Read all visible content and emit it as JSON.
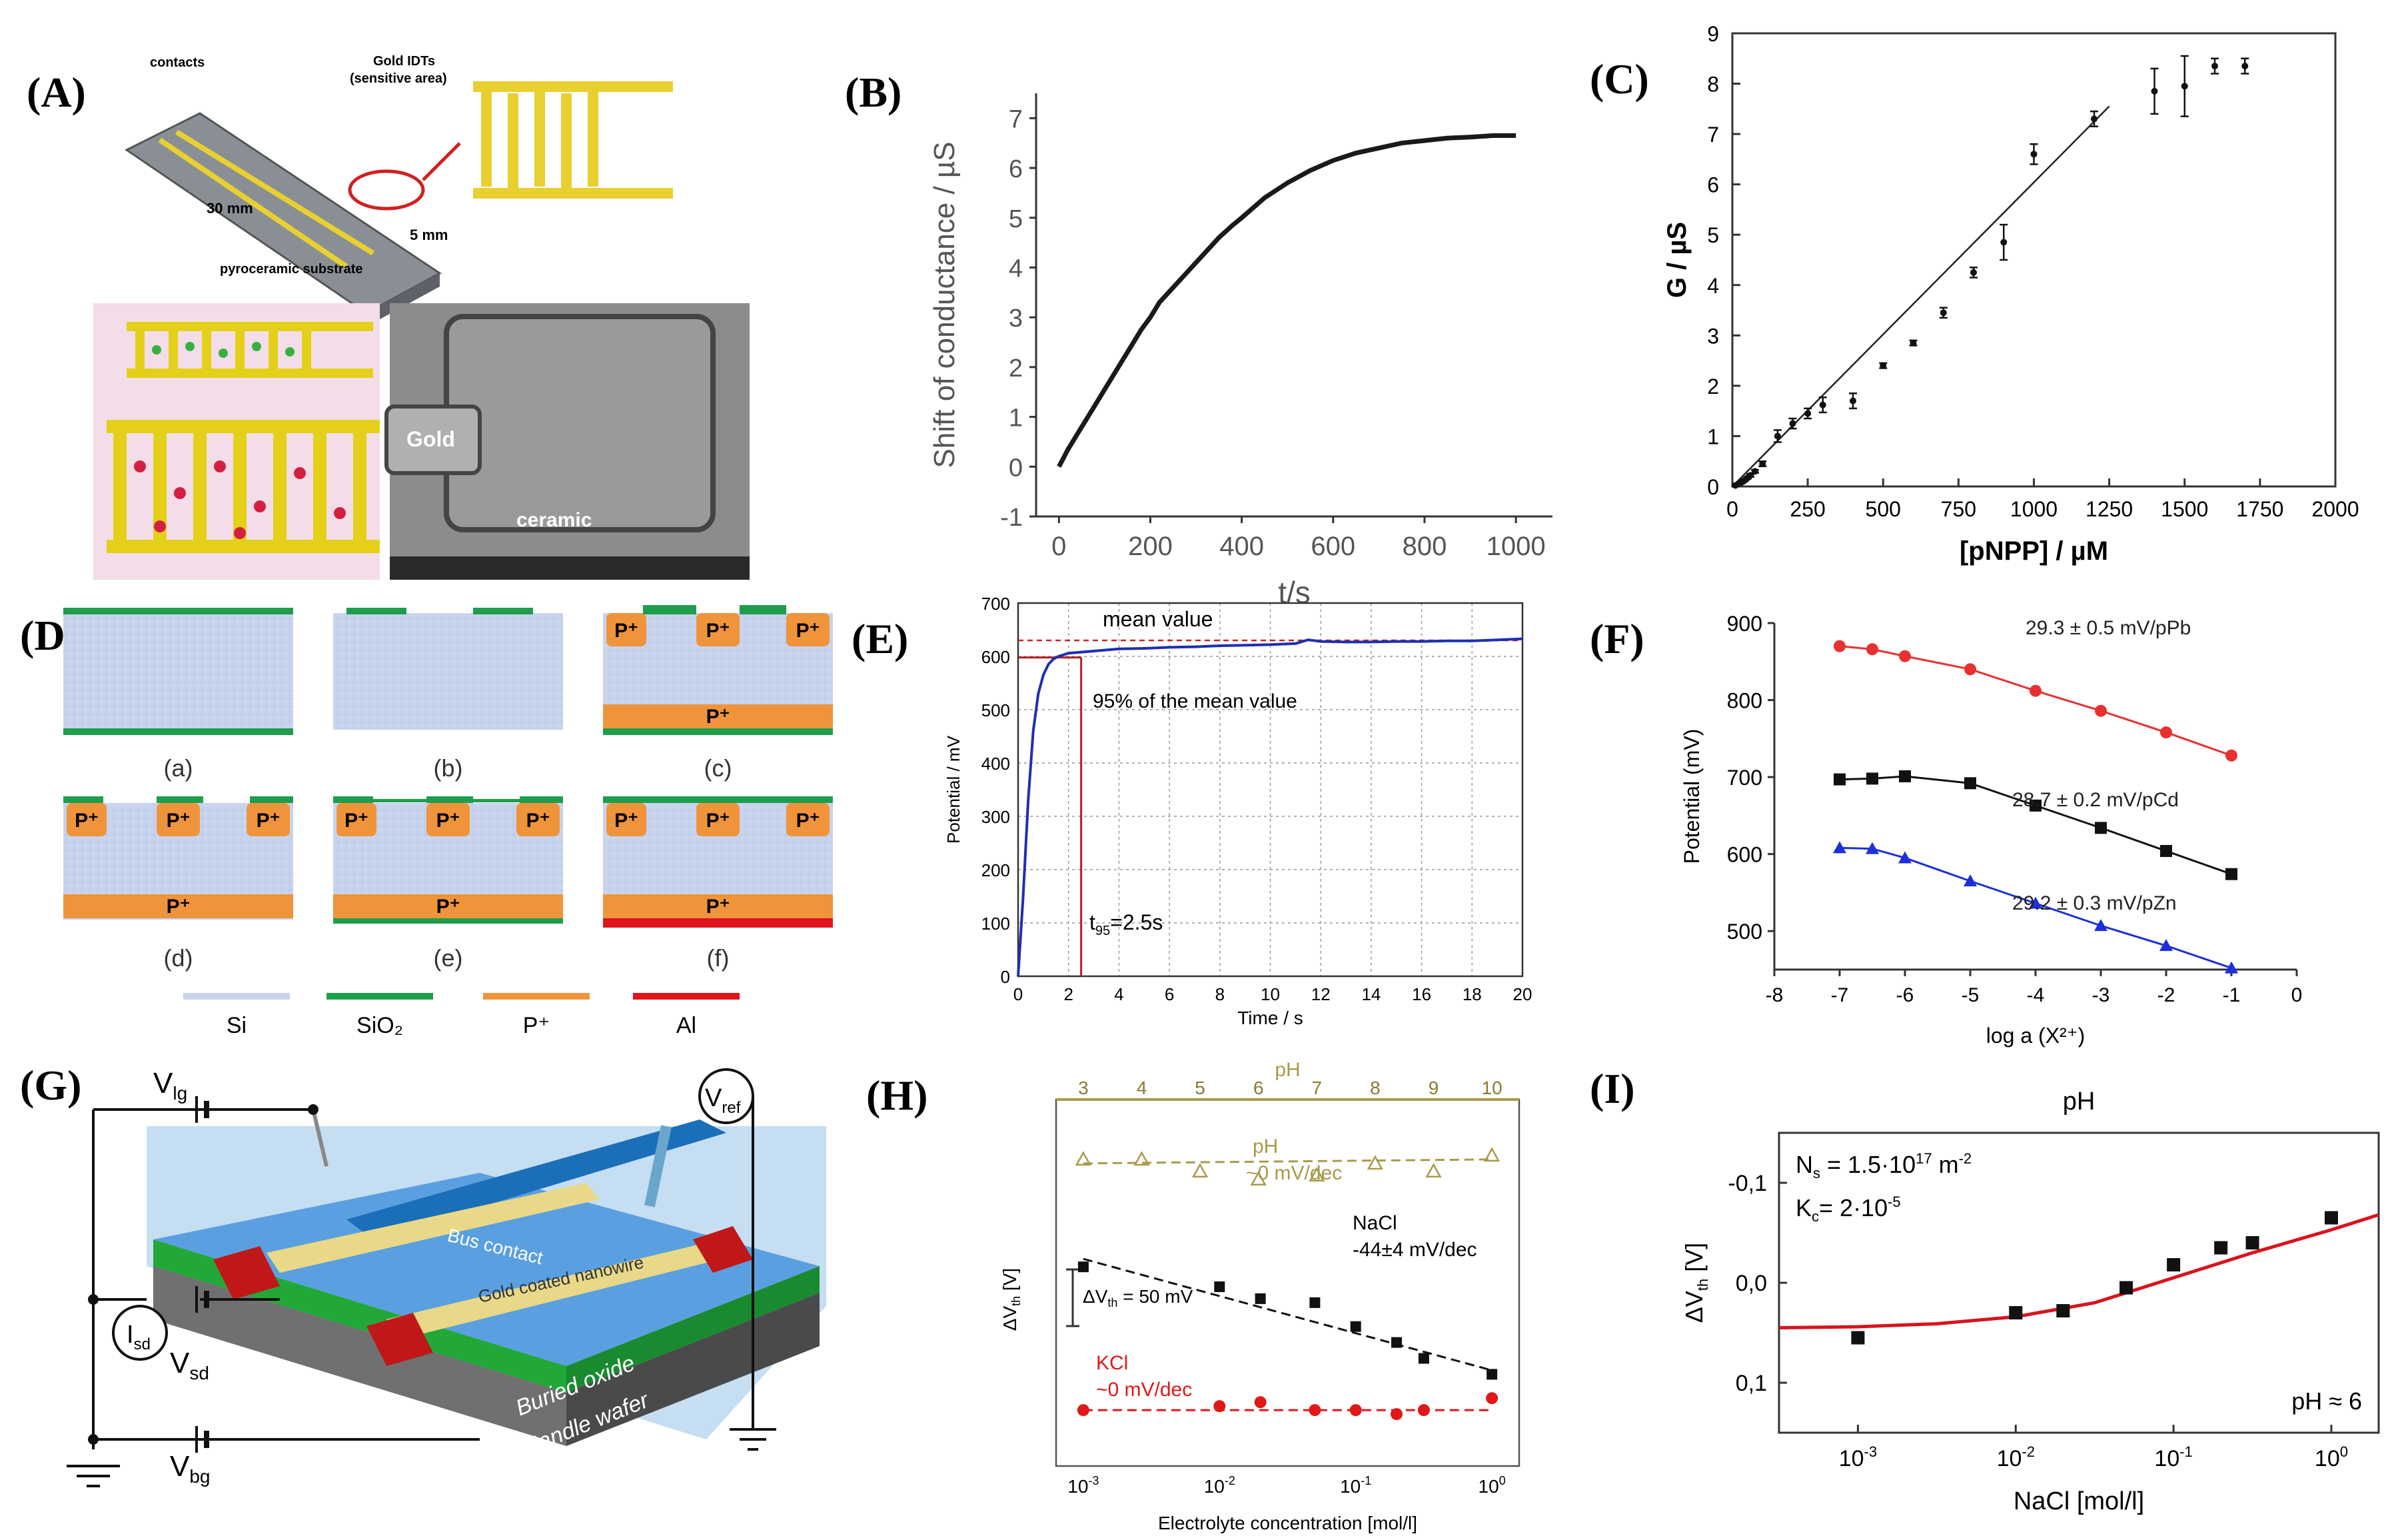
{
  "panel_labels": [
    "(A)",
    "(B)",
    "(C)",
    "(D)",
    "(E)",
    "(F)",
    "(G)",
    "(H)",
    "(I)"
  ],
  "panelA": {
    "contacts": "contacts",
    "gold_idts_line1": "Gold IDTs",
    "gold_idts_line2": "(sensitive area)",
    "length": "30 mm",
    "width": "5 mm",
    "substrate": "pyroceramic substrate",
    "sem_gold": "Gold",
    "sem_ceramic": "ceramic"
  },
  "panelD": {
    "sublabels": [
      "(a)",
      "(b)",
      "(c)",
      "(d)",
      "(e)",
      "(f)"
    ],
    "p_plus": "P⁺",
    "legend": [
      "Si",
      "SiO₂",
      "P⁺",
      "Al"
    ],
    "colors": {
      "si": "#c7d3ec",
      "sio2": "#1e9e4c",
      "pplus": "#f0943c",
      "al": "#e0141e"
    }
  },
  "panelG": {
    "v_lg": "V",
    "v_lg_sub": "lg",
    "v_ref": "V",
    "v_ref_sub": "ref",
    "i_sd": "I",
    "i_sd_sub": "sd",
    "v_sd": "V",
    "v_sd_sub": "sd",
    "v_bg": "V",
    "v_bg_sub": "bg",
    "bus_contact": "Bus contact",
    "nanowire": "Gold coated nanowire",
    "buried_oxide": "Buried oxide",
    "handle_wafer": "Handle wafer"
  },
  "chart_data": [
    {
      "id": "B",
      "type": "line",
      "xlabel": "t/s",
      "ylabel": "Shift of conductance / µS",
      "xlim": [
        -50,
        1080
      ],
      "ylim": [
        -1,
        7.5
      ],
      "xticks": [
        0,
        200,
        400,
        600,
        800,
        1000
      ],
      "yticks": [
        -1,
        0,
        1,
        2,
        3,
        4,
        5,
        6,
        7
      ],
      "series": [
        {
          "name": "conductance",
          "color": "#1a1a1a",
          "x": [
            0,
            20,
            40,
            60,
            80,
            100,
            120,
            140,
            160,
            180,
            200,
            220,
            250,
            280,
            300,
            330,
            350,
            380,
            400,
            450,
            500,
            550,
            600,
            650,
            700,
            750,
            800,
            850,
            900,
            950,
            1000
          ],
          "y": [
            0.0,
            0.35,
            0.65,
            0.95,
            1.25,
            1.55,
            1.85,
            2.15,
            2.45,
            2.75,
            3.0,
            3.3,
            3.6,
            3.9,
            4.1,
            4.4,
            4.6,
            4.85,
            5.0,
            5.4,
            5.7,
            5.95,
            6.15,
            6.3,
            6.4,
            6.5,
            6.55,
            6.6,
            6.62,
            6.65,
            6.65
          ]
        }
      ]
    },
    {
      "id": "C",
      "type": "scatter",
      "xlabel": "[pNPP] / µM",
      "ylabel": "G / µS",
      "xlim": [
        0,
        2000
      ],
      "ylim": [
        0,
        9
      ],
      "xticks": [
        0,
        250,
        500,
        750,
        1000,
        1250,
        1500,
        1750,
        2000
      ],
      "yticks": [
        0,
        1,
        2,
        3,
        4,
        5,
        6,
        7,
        8,
        9
      ],
      "points": {
        "x": [
          10,
          20,
          30,
          40,
          50,
          60,
          75,
          100,
          150,
          200,
          250,
          300,
          400,
          500,
          600,
          700,
          800,
          900,
          1000,
          1200,
          1400,
          1500,
          1600,
          1700
        ],
        "y": [
          0.02,
          0.05,
          0.08,
          0.12,
          0.17,
          0.22,
          0.3,
          0.45,
          1.0,
          1.25,
          1.45,
          1.62,
          1.7,
          2.4,
          2.85,
          3.45,
          4.25,
          4.85,
          6.6,
          7.3,
          7.85,
          7.95,
          8.35,
          8.35
        ],
        "err": [
          0.02,
          0.02,
          0.02,
          0.02,
          0.02,
          0.03,
          0.03,
          0.05,
          0.12,
          0.1,
          0.1,
          0.15,
          0.15,
          0.05,
          0.05,
          0.1,
          0.1,
          0.35,
          0.2,
          0.15,
          0.45,
          0.6,
          0.15,
          0.15
        ]
      },
      "fit": {
        "x": [
          0,
          1250
        ],
        "y": [
          0,
          7.55
        ]
      }
    },
    {
      "id": "E",
      "type": "line",
      "xlabel": "Time / s",
      "ylabel": "Potential / mV",
      "xlim": [
        0,
        20
      ],
      "ylim": [
        0,
        700
      ],
      "xticks": [
        0,
        2,
        4,
        6,
        8,
        10,
        12,
        14,
        16,
        18,
        20
      ],
      "yticks": [
        0,
        100,
        200,
        300,
        400,
        500,
        600,
        700
      ],
      "mean_value": 630,
      "t95": 2.5,
      "pct95_value": 598,
      "annotations": {
        "mean": "mean value",
        "pct95": "95% of the mean value",
        "t95_main": "t",
        "t95_sub": "95",
        "t95_rest": "=2.5s"
      },
      "series": [
        {
          "name": "potential",
          "color": "#1f2fb0",
          "x": [
            0,
            0.2,
            0.4,
            0.6,
            0.8,
            1.0,
            1.2,
            1.4,
            1.6,
            1.8,
            2.0,
            2.5,
            3.0,
            3.5,
            4.0,
            5.0,
            6.0,
            7.0,
            8.0,
            9.0,
            10.0,
            11.0,
            11.5,
            12.0,
            13,
            14,
            15,
            16,
            17,
            18,
            19,
            20
          ],
          "y": [
            0,
            150,
            330,
            460,
            530,
            565,
            585,
            595,
            600,
            603,
            606,
            608,
            610,
            612,
            614,
            615,
            617,
            618,
            620,
            621,
            622,
            624,
            631,
            628,
            627,
            627,
            628,
            628,
            629,
            629,
            631,
            633
          ]
        }
      ]
    },
    {
      "id": "F",
      "type": "line",
      "xlabel": "log a (X²⁺)",
      "ylabel": "Potential (mV)",
      "xlim": [
        -8,
        0
      ],
      "ylim": [
        450,
        900
      ],
      "xticks": [
        -8,
        -7,
        -6,
        -5,
        -4,
        -3,
        -2,
        -1,
        0
      ],
      "yticks": [
        500,
        600,
        700,
        800,
        900
      ],
      "series": [
        {
          "name": "29.3 ± 0.5 mV/pPb",
          "color": "#e83030",
          "marker": "circle",
          "x": [
            -7,
            -6.5,
            -6,
            -5,
            -4,
            -3,
            -2,
            -1
          ],
          "y": [
            870,
            866,
            857,
            840,
            812,
            786,
            758,
            728
          ]
        },
        {
          "name": "28.7 ± 0.2 mV/pCd",
          "color": "#111111",
          "marker": "square",
          "x": [
            -7,
            -6.5,
            -6,
            -5,
            -4,
            -3,
            -2,
            -1
          ],
          "y": [
            697,
            698,
            701,
            692,
            663,
            634,
            604,
            574
          ]
        },
        {
          "name": "29.2 ± 0.3 mV/pZn",
          "color": "#1c2fd8",
          "marker": "triangle",
          "x": [
            -7,
            -6.5,
            -6,
            -5,
            -4,
            -3,
            -2,
            -1
          ],
          "y": [
            608,
            607,
            595,
            565,
            536,
            507,
            481,
            452
          ]
        }
      ]
    },
    {
      "id": "H",
      "type": "scatter",
      "xlabel": "Electrolyte concentration [mol/l]",
      "ylabel": "ΔV",
      "ylabel_sub": "th",
      "ylabel_unit": " [V]",
      "top_axis_label": "pH",
      "top_ticks": [
        "3",
        "4",
        "5",
        "6",
        "7",
        "8",
        "9",
        "10"
      ],
      "xticks": [
        "10",
        "10",
        "10",
        "10"
      ],
      "xtick_exp": [
        "-3",
        "-2",
        "-1",
        "0"
      ],
      "scale_bar": "ΔV",
      "scale_bar_sub": "th",
      "scale_bar_rest": " = 50 mV",
      "series": [
        {
          "name": "pH",
          "label1": "pH",
          "label2": "~0 mV/dec",
          "color": "#a89a4a",
          "marker": "triangle-open",
          "pH": [
            3,
            4,
            5,
            6,
            7,
            8,
            9,
            10
          ],
          "dv": [
            0.43,
            0.43,
            0.46,
            0.48,
            0.47,
            0.44,
            0.46,
            0.42
          ]
        },
        {
          "name": "NaCl",
          "label1": "NaCl",
          "label2": "-44±4 mV/dec",
          "color": "#111111",
          "marker": "square",
          "log_c": [
            -3,
            -2,
            -1.7,
            -1.3,
            -1,
            -0.7,
            -0.5,
            0
          ],
          "dv": [
            0.7,
            0.75,
            0.78,
            0.79,
            0.85,
            0.89,
            0.93,
            0.97
          ]
        },
        {
          "name": "KCl",
          "label1": "KCl",
          "label2": "~0 mV/dec",
          "color": "#e01818",
          "marker": "circle",
          "log_c": [
            -3,
            -2,
            -1.7,
            -1.3,
            -1,
            -0.7,
            -0.5,
            0
          ],
          "dv": [
            1.06,
            1.05,
            1.04,
            1.06,
            1.06,
            1.07,
            1.06,
            1.03
          ]
        }
      ]
    },
    {
      "id": "I",
      "type": "scatter",
      "title": "pH",
      "xlabel": "NaCl [mol/l]",
      "ylabel": "ΔV",
      "ylabel_sub": "th",
      "ylabel_unit": " [V]",
      "ylim": [
        0.15,
        -0.15
      ],
      "yticks": [
        -0.1,
        0.0,
        0.1
      ],
      "ytick_labels": [
        "-0,1",
        "0,0",
        "0,1"
      ],
      "xticks_exp": [
        "-3",
        "-2",
        "-1",
        "0"
      ],
      "ann": {
        "ns_a": "N",
        "ns_sub": "s",
        "ns_b": " = 1.5·10",
        "ns_sup": "17",
        "ns_c": " m",
        "ns_sup2": "-2",
        "kc_a": "K",
        "kc_sub": "c",
        "kc_b": "= 2·10",
        "kc_sup": "-5",
        "ph": "pH ≈ 6"
      },
      "points": {
        "log_c": [
          -3,
          -2,
          -1.7,
          -1.3,
          -1,
          -0.7,
          -0.5,
          0
        ],
        "dv": [
          0.055,
          0.03,
          0.028,
          0.005,
          -0.018,
          -0.035,
          -0.04,
          -0.065
        ]
      },
      "fit": {
        "log_c": [
          -3.5,
          -3,
          -2.5,
          -2,
          -1.5,
          -1,
          -0.5,
          0,
          0.3
        ],
        "dv": [
          0.045,
          0.044,
          0.041,
          0.034,
          0.02,
          -0.005,
          -0.03,
          -0.053,
          -0.068
        ]
      },
      "fit_color": "#d8141e"
    }
  ]
}
